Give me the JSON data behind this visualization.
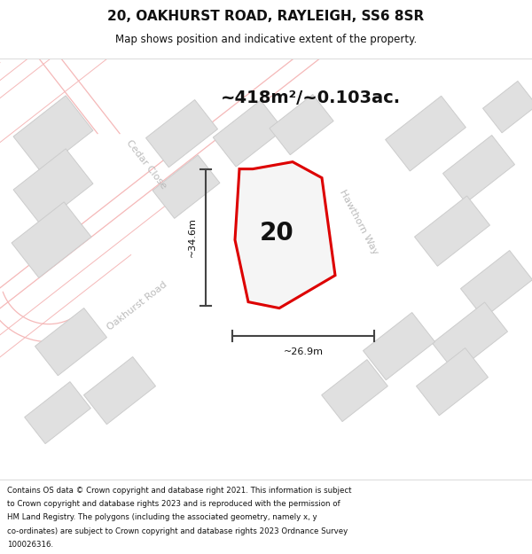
{
  "title": "20, OAKHURST ROAD, RAYLEIGH, SS6 8SR",
  "subtitle": "Map shows position and indicative extent of the property.",
  "footer": "Contains OS data © Crown copyright and database right 2021. This information is subject to Crown copyright and database rights 2023 and is reproduced with the permission of HM Land Registry. The polygons (including the associated geometry, namely x, y co-ordinates) are subject to Crown copyright and database rights 2023 Ordnance Survey 100026316.",
  "area_text": "~418m²/~0.103ac.",
  "number_label": "20",
  "dim_vertical": "~34.6m",
  "dim_horizontal": "~26.9m",
  "map_bg": "#ffffff",
  "road_line_color": "#f5b8b8",
  "road_fill_color": "#f9e8e8",
  "building_fill": "#e0e0e0",
  "building_outline": "#cccccc",
  "plot_fill": "#f0f0f0",
  "plot_outline": "#dd0000",
  "cedar_close_label": "Cedar Close",
  "oakhurst_road_label": "Oakhurst Road",
  "hawthorn_way_label": "Hawthorn Way",
  "road_label_color": "#bbbbbb",
  "dim_line_color": "#444444",
  "title_color": "#111111",
  "footer_color": "#111111",
  "sep_line_color": "#dddddd"
}
